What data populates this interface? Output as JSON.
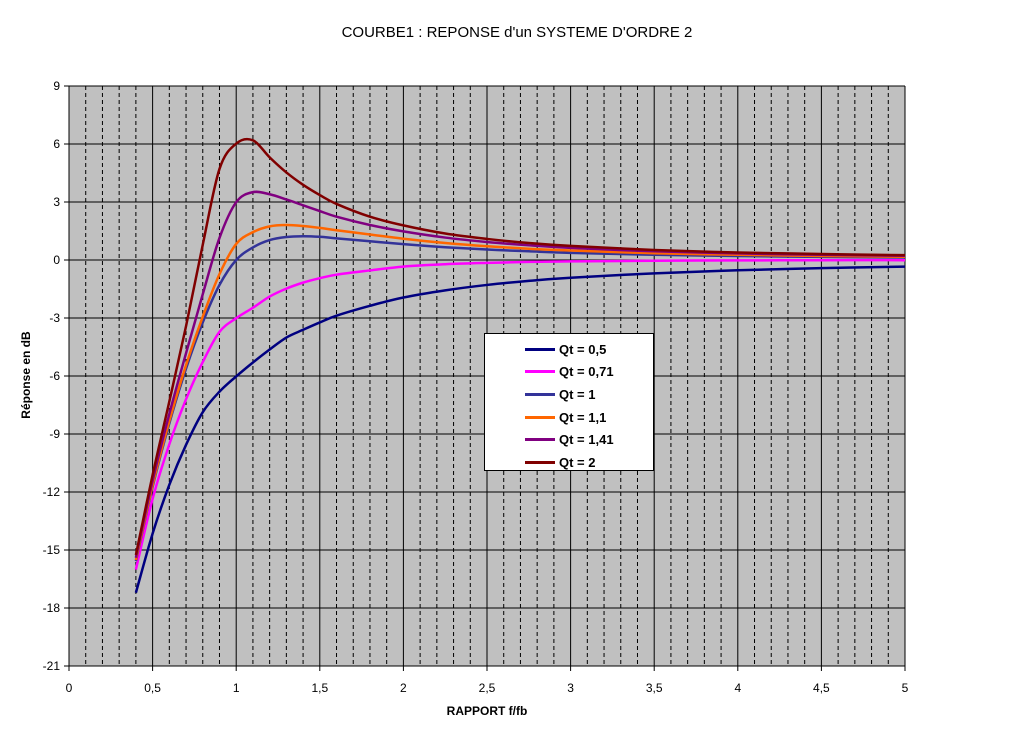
{
  "chart_data": {
    "type": "line",
    "title": "COURBE1 : REPONSE d'un  SYSTEME D'ORDRE 2",
    "xlabel": "RAPPORT f/fb",
    "ylabel": "Réponse en dB",
    "xlim": [
      0,
      5
    ],
    "ylim": [
      -21,
      9
    ],
    "x_ticks": [
      0,
      0.5,
      1,
      1.5,
      2,
      2.5,
      3,
      3.5,
      4,
      4.5,
      5
    ],
    "x_tick_labels": [
      "0",
      "0,5",
      "1",
      "1,5",
      "2",
      "2,5",
      "3",
      "3,5",
      "4",
      "4,5",
      "5"
    ],
    "y_ticks": [
      9,
      6,
      3,
      0,
      -3,
      -6,
      -9,
      -12,
      -15,
      -18,
      -21
    ],
    "y_tick_labels": [
      "9",
      "6",
      "3",
      "0",
      "-3",
      "-6",
      "-9",
      "-12",
      "-15",
      "-18",
      "-21"
    ],
    "x_minor_step": 0.1,
    "grid": true,
    "plot_background": "#c0c0c0",
    "legend_position": "center",
    "x": [
      0.4,
      0.5,
      0.6,
      0.7,
      0.8,
      0.9,
      1.0,
      1.1,
      1.2,
      1.3,
      1.4,
      1.5,
      1.6,
      1.8,
      2.0,
      2.25,
      2.5,
      2.75,
      3.0,
      3.5,
      4.0,
      4.5,
      5.0
    ],
    "series": [
      {
        "name": "Qt = 0,5",
        "color": "#000080",
        "values": [
          -17.21,
          -14.15,
          -11.63,
          -9.56,
          -7.87,
          -6.81,
          -6.02,
          -5.3,
          -4.63,
          -4.01,
          -3.61,
          -3.23,
          -2.88,
          -2.37,
          -1.94,
          -1.57,
          -1.29,
          -1.08,
          -0.92,
          -0.69,
          -0.53,
          -0.42,
          -0.34
        ]
      },
      {
        "name": "Qt = 0,71",
        "color": "#ff00ff",
        "values": [
          -16.01,
          -12.36,
          -9.53,
          -7.2,
          -5.28,
          -3.72,
          -3.01,
          -2.47,
          -1.89,
          -1.48,
          -1.17,
          -0.94,
          -0.76,
          -0.54,
          -0.34,
          -0.22,
          -0.15,
          -0.1,
          -0.07,
          -0.04,
          -0.02,
          -0.01,
          -0.01
        ]
      },
      {
        "name": "Qt = 1",
        "color": "#333399",
        "values": [
          -15.58,
          -11.73,
          -8.45,
          -5.62,
          -3.23,
          -1.29,
          0.0,
          0.65,
          1.03,
          1.19,
          1.23,
          1.2,
          1.12,
          0.97,
          0.82,
          0.66,
          0.54,
          0.45,
          0.37,
          0.27,
          0.21,
          0.16,
          0.13
        ]
      },
      {
        "name": "Qt = 1,1",
        "color": "#ff6600",
        "values": [
          -15.52,
          -11.64,
          -8.33,
          -5.44,
          -2.93,
          -0.73,
          0.83,
          1.44,
          1.74,
          1.81,
          1.76,
          1.66,
          1.54,
          1.32,
          1.1,
          0.88,
          0.71,
          0.58,
          0.49,
          0.35,
          0.27,
          0.21,
          0.17
        ]
      },
      {
        "name": "Qt = 1,41",
        "color": "#800080",
        "values": [
          -15.4,
          -11.42,
          -7.96,
          -4.82,
          -1.77,
          1.14,
          2.99,
          3.51,
          3.4,
          3.13,
          2.83,
          2.53,
          2.24,
          1.81,
          1.48,
          1.16,
          0.93,
          0.76,
          0.63,
          0.45,
          0.34,
          0.27,
          0.22
        ]
      },
      {
        "name": "Qt = 2",
        "color": "#800000",
        "values": [
          -15.26,
          -11.12,
          -7.32,
          -3.42,
          0.79,
          4.71,
          6.02,
          6.19,
          5.31,
          4.53,
          3.89,
          3.36,
          2.9,
          2.24,
          1.79,
          1.37,
          1.09,
          0.88,
          0.73,
          0.52,
          0.39,
          0.31,
          0.25
        ]
      }
    ]
  }
}
